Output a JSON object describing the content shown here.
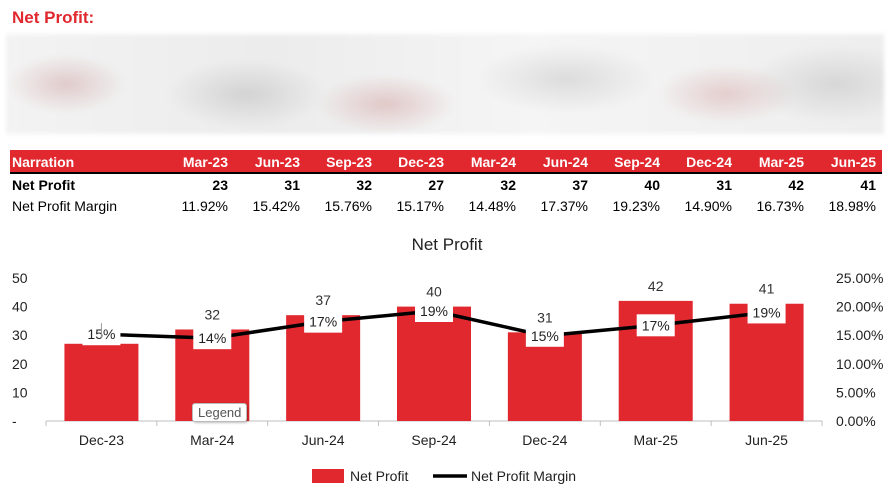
{
  "section_title": "Net Profit:",
  "table": {
    "headers": [
      "Narration",
      "Mar-23",
      "Jun-23",
      "Sep-23",
      "Dec-23",
      "Mar-24",
      "Jun-24",
      "Sep-24",
      "Dec-24",
      "Mar-25",
      "Jun-25"
    ],
    "rows": [
      {
        "label": "Net Profit",
        "values": [
          "23",
          "31",
          "32",
          "27",
          "32",
          "37",
          "40",
          "31",
          "42",
          "41"
        ]
      },
      {
        "label": "Net Profit Margin",
        "values": [
          "11.92%",
          "15.42%",
          "15.76%",
          "15.17%",
          "14.48%",
          "17.37%",
          "19.23%",
          "14.90%",
          "16.73%",
          "18.98%"
        ]
      }
    ]
  },
  "legend_tooltip": "Legend",
  "chart_data": {
    "type": "bar",
    "title": "Net Profit",
    "categories": [
      "Dec-23",
      "Mar-24",
      "Jun-24",
      "Sep-24",
      "Dec-24",
      "Mar-25",
      "Jun-25"
    ],
    "series": [
      {
        "name": "Net Profit",
        "type": "bar",
        "axis": "left",
        "color": "#e0282e",
        "values": [
          27,
          32,
          37,
          40,
          31,
          42,
          41
        ]
      },
      {
        "name": "Net Profit Margin",
        "type": "line",
        "axis": "right",
        "color": "#000000",
        "values": [
          15.17,
          14.48,
          17.37,
          19.23,
          14.9,
          16.73,
          18.98
        ],
        "labels": [
          "15%",
          "14%",
          "17%",
          "19%",
          "15%",
          "17%",
          "19%"
        ]
      }
    ],
    "left_axis": {
      "ticks": [
        "-",
        "10",
        "20",
        "30",
        "40",
        "50"
      ],
      "ylim": [
        0,
        50
      ]
    },
    "right_axis": {
      "ticks": [
        "0.00%",
        "5.00%",
        "10.00%",
        "15.00%",
        "20.00%",
        "25.00%"
      ],
      "ylim": [
        0,
        25
      ]
    },
    "legend": {
      "position": "bottom",
      "entries": [
        "Net Profit",
        "Net Profit Margin"
      ]
    }
  }
}
